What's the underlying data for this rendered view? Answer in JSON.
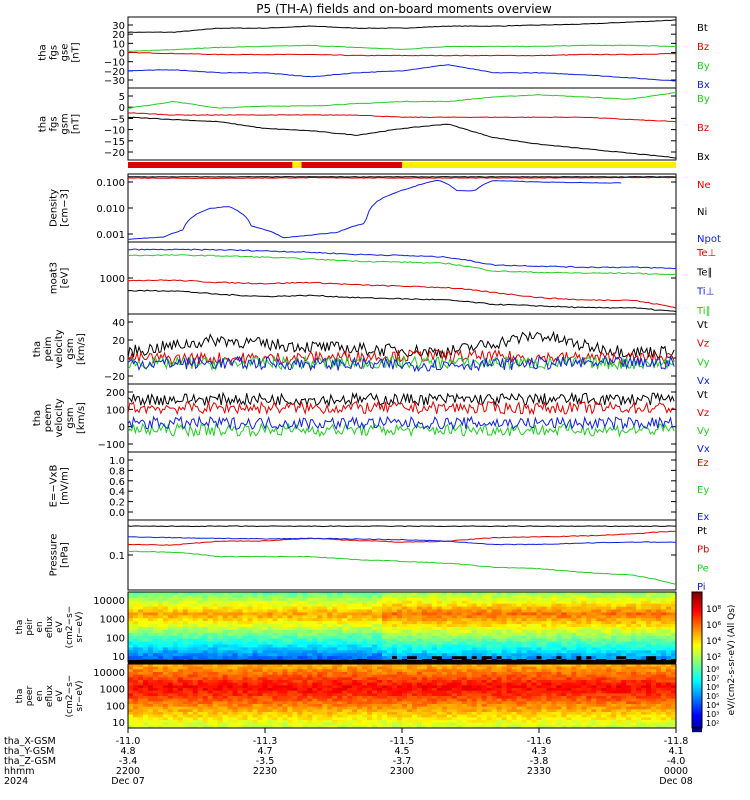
{
  "title": "P5 (TH-A) fields and on-board moments overview",
  "colors": {
    "black": "#000000",
    "red": "#dd0000",
    "green": "#22cc22",
    "blue": "#1020dd",
    "yellow": "#ffee00",
    "barred": "#dd0000"
  },
  "chart_data": {
    "type": "line",
    "x_axis": {
      "label_rows": [
        "tha_X-GSM",
        "tha_Y-GSM",
        "tha_Z-GSM",
        "hhmm",
        "2024"
      ],
      "tick_times": [
        "2200",
        "2230",
        "2300",
        "2330",
        "0000"
      ],
      "tick_dates": [
        "Dec 07",
        "",
        "",
        "",
        "Dec 08"
      ],
      "x_gsm": [
        "-11.0",
        "-11.3",
        "-11.5",
        "-11.6",
        "-11.8"
      ],
      "y_gsm": [
        "4.8",
        "4.7",
        "4.5",
        "4.3",
        "4.1"
      ],
      "z_gsm": [
        "-3.4",
        "-3.5",
        "-3.7",
        "-3.8",
        "-4.0"
      ],
      "range_minutes": [
        0,
        120
      ]
    },
    "panels": [
      {
        "id": "fgs_gse",
        "ylabel_lines": [
          "tha",
          "fgs",
          "gse",
          "[nT]"
        ],
        "yrange": [
          -35,
          35
        ],
        "yticks": [
          "30",
          "20",
          "10",
          "0",
          "−10",
          "−20",
          "−30"
        ],
        "series": [
          {
            "name": "Bt",
            "color": "black",
            "x": [
              0,
              10,
              20,
              30,
              40,
              50,
              60,
              70,
              80,
              90,
              100,
              110,
              120
            ],
            "y": [
              20,
              20,
              24,
              24,
              26,
              24,
              24,
              26,
              26,
              27,
              28,
              30,
              32
            ]
          },
          {
            "name": "Bz",
            "color": "red",
            "x": [
              0,
              10,
              20,
              30,
              40,
              50,
              60,
              70,
              80,
              90,
              100,
              110,
              120
            ],
            "y": [
              0,
              -1,
              -2,
              -2,
              -2,
              -3,
              -3,
              -3,
              -3,
              -3,
              -2,
              -2,
              -1
            ]
          },
          {
            "name": "By",
            "color": "green",
            "x": [
              0,
              10,
              20,
              30,
              40,
              50,
              60,
              70,
              80,
              90,
              100,
              110,
              120
            ],
            "y": [
              1,
              3,
              5,
              6,
              7,
              5,
              3,
              6,
              6,
              6,
              7,
              7,
              6
            ]
          },
          {
            "name": "Bx",
            "color": "blue",
            "x": [
              0,
              10,
              20,
              30,
              40,
              50,
              60,
              70,
              80,
              90,
              100,
              110,
              120
            ],
            "y": [
              -18,
              -17,
              -20,
              -20,
              -24,
              -20,
              -18,
              -12,
              -20,
              -20,
              -22,
              -25,
              -28
            ]
          }
        ]
      },
      {
        "id": "fgs_gsm",
        "ylabel_lines": [
          "tha",
          "fgs",
          "gsm",
          "[nT]"
        ],
        "yrange": [
          -24,
          8
        ],
        "yticks": [
          "5",
          "0",
          "−5",
          "−10",
          "−15",
          "−20"
        ],
        "series": [
          {
            "name": "By",
            "color": "green",
            "x": [
              0,
              10,
              20,
              30,
              40,
              50,
              60,
              70,
              80,
              90,
              100,
              110,
              120
            ],
            "y": [
              -1,
              2,
              -1,
              0,
              0,
              1,
              2,
              2,
              4,
              5,
              4,
              3,
              6
            ]
          },
          {
            "name": "Bz",
            "color": "red",
            "x": [
              0,
              10,
              20,
              30,
              40,
              50,
              60,
              70,
              80,
              90,
              100,
              110,
              120
            ],
            "y": [
              -3,
              -4,
              -4,
              -4,
              -4,
              -4,
              -5,
              -5,
              -5,
              -5,
              -5,
              -6,
              -7
            ]
          },
          {
            "name": "Bx",
            "color": "black",
            "x": [
              0,
              10,
              20,
              30,
              40,
              50,
              60,
              70,
              80,
              90,
              100,
              110,
              120
            ],
            "y": [
              -5,
              -6,
              -7,
              -10,
              -11,
              -13,
              -10,
              -8,
              -14,
              -17,
              -19,
              -21,
              -23
            ]
          }
        ]
      },
      {
        "id": "density",
        "ylabel_lines": [
          "Density",
          "[cm−3]"
        ],
        "yrange": [
          0.0006,
          0.6
        ],
        "log": true,
        "yticks": [
          "0.100",
          "0.010",
          "0.001"
        ],
        "series": [
          {
            "name": "Ne",
            "color": "red",
            "x": [
              0,
              20,
              40,
              60,
              80,
              100,
              120
            ],
            "y": [
              0.4,
              0.39,
              0.41,
              0.4,
              0.4,
              0.41,
              0.42
            ]
          },
          {
            "name": "Ni",
            "color": "black",
            "x": [
              0,
              120
            ],
            "y": [
              0.45,
              0.45
            ]
          },
          {
            "name": "Npot",
            "color": "blue",
            "x": [
              0,
              8,
              12,
              18,
              22,
              27,
              34,
              40,
              46,
              52,
              58,
              62,
              66,
              68,
              72,
              76,
              80,
              86,
              92,
              100,
              108
            ],
            "y": [
              0.0008,
              0.001,
              0.002,
              0.018,
              0.022,
              0.003,
              0.0009,
              0.0012,
              0.0016,
              0.004,
              0.08,
              0.15,
              0.26,
              0.32,
              0.11,
              0.11,
              0.31,
              0.28,
              0.26,
              0.25,
              0.24
            ]
          }
        ]
      },
      {
        "id": "temps",
        "ylabel_lines": [
          "moat3",
          "[eV]"
        ],
        "yrange": [
          450,
          12000
        ],
        "log": true,
        "yticks": [
          "1000"
        ],
        "series": [
          {
            "name": "Te⊥",
            "color": "red",
            "x": [
              0,
              10,
              20,
              30,
              40,
              50,
              60,
              70,
              80,
              90,
              100,
              110,
              120
            ],
            "y": [
              2100,
              2100,
              1900,
              1800,
              1900,
              1700,
              1600,
              1500,
              1200,
              950,
              850,
              850,
              600
            ]
          },
          {
            "name": "Te∥",
            "color": "black",
            "x": [
              0,
              10,
              20,
              30,
              40,
              50,
              60,
              70,
              80,
              90,
              100,
              110,
              120
            ],
            "y": [
              1300,
              1300,
              1100,
              1000,
              1050,
              950,
              900,
              850,
              700,
              650,
              600,
              600,
              500
            ]
          },
          {
            "name": "Ti⊥",
            "color": "blue",
            "x": [
              0,
              10,
              20,
              30,
              40,
              50,
              60,
              70,
              80,
              90,
              100,
              110,
              120
            ],
            "y": [
              8500,
              8500,
              8400,
              8000,
              7500,
              6800,
              6500,
              6000,
              4200,
              4000,
              3800,
              3800,
              3600
            ]
          },
          {
            "name": "Ti∥",
            "color": "green",
            "x": [
              0,
              10,
              20,
              30,
              40,
              50,
              60,
              70,
              80,
              90,
              100,
              110,
              120
            ],
            "y": [
              6500,
              6600,
              6400,
              6000,
              5500,
              5000,
              4800,
              4500,
              3200,
              3000,
              2900,
              2900,
              2700
            ]
          }
        ]
      },
      {
        "id": "peim_vel",
        "ylabel_lines": [
          "tha",
          "peim",
          "velocity",
          "gsm",
          "[km/s]"
        ],
        "yrange": [
          -22,
          52
        ],
        "noisy": true,
        "yticks": [
          "40",
          "20",
          "0",
          "−20"
        ],
        "series": [
          {
            "name": "Vt",
            "color": "black",
            "x": [
              0,
              20,
              30,
              50,
              70,
              90,
              100,
              110,
              120
            ],
            "y": [
              12,
              25,
              20,
              15,
              12,
              30,
              18,
              12,
              12
            ]
          },
          {
            "name": "Vz",
            "color": "red",
            "x": [
              0,
              30,
              60,
              90,
              120
            ],
            "y": [
              5,
              5,
              8,
              6,
              5
            ]
          },
          {
            "name": "Vy",
            "color": "green",
            "x": [
              0,
              30,
              60,
              90,
              120
            ],
            "y": [
              0,
              0,
              1,
              0,
              0
            ]
          },
          {
            "name": "Vx",
            "color": "blue",
            "x": [
              0,
              30,
              60,
              90,
              120
            ],
            "y": [
              0,
              0,
              -2,
              0,
              0
            ]
          }
        ]
      },
      {
        "id": "peem_vel",
        "ylabel_lines": [
          "tha",
          "peem",
          "velocity",
          "gsm",
          "[km/s]"
        ],
        "yrange": [
          -200,
          200
        ],
        "noisy": true,
        "yticks": [
          "200",
          "100",
          "0",
          "−100"
        ],
        "series": [
          {
            "name": "Vt",
            "color": "black",
            "x": [
              0,
              60,
              120
            ],
            "y": [
              110,
              110,
              110
            ]
          },
          {
            "name": "Vz",
            "color": "red",
            "x": [
              0,
              60,
              120
            ],
            "y": [
              60,
              60,
              60
            ]
          },
          {
            "name": "Vy",
            "color": "green",
            "x": [
              0,
              60,
              120
            ],
            "y": [
              -70,
              -70,
              -70
            ]
          },
          {
            "name": "Vx",
            "color": "blue",
            "x": [
              0,
              60,
              120
            ],
            "y": [
              -30,
              -30,
              -30
            ]
          }
        ]
      },
      {
        "id": "efield",
        "ylabel_lines": [
          "E=−VxB",
          "[mV/m]"
        ],
        "yrange": [
          -0.05,
          1.05
        ],
        "yticks": [
          "1.0",
          "0.8",
          "0.6",
          "0.4",
          "0.2",
          "0.0"
        ],
        "series": [
          {
            "name": "Ez",
            "color": "red",
            "x": [],
            "y": []
          },
          {
            "name": "Ey",
            "color": "green",
            "x": [],
            "y": []
          },
          {
            "name": "Ex",
            "color": "blue",
            "x": [],
            "y": []
          }
        ]
      },
      {
        "id": "pressure",
        "ylabel_lines": [
          "Pressure",
          "[nPa]"
        ],
        "yrange": [
          0.008,
          1.6
        ],
        "log": true,
        "yticks": [
          "0.1"
        ],
        "series": [
          {
            "name": "Pt",
            "color": "black",
            "x": [
              0,
              120
            ],
            "y": [
              1.0,
              1.0
            ]
          },
          {
            "name": "Pb",
            "color": "red",
            "x": [
              0,
              10,
              20,
              30,
              40,
              50,
              60,
              70,
              80,
              90,
              100,
              110,
              120
            ],
            "y": [
              0.25,
              0.24,
              0.32,
              0.33,
              0.4,
              0.34,
              0.3,
              0.32,
              0.42,
              0.45,
              0.48,
              0.55,
              0.7
            ]
          },
          {
            "name": "Pe",
            "color": "green",
            "x": [
              0,
              10,
              20,
              30,
              40,
              50,
              60,
              70,
              80,
              90,
              100,
              110,
              120
            ],
            "y": [
              0.15,
              0.14,
              0.1,
              0.1,
              0.1,
              0.08,
              0.07,
              0.06,
              0.045,
              0.04,
              0.03,
              0.025,
              0.012
            ]
          },
          {
            "name": "Pi",
            "color": "blue",
            "x": [
              0,
              10,
              20,
              30,
              40,
              50,
              60,
              70,
              80,
              90,
              100,
              110,
              120
            ],
            "y": [
              0.45,
              0.42,
              0.4,
              0.38,
              0.4,
              0.38,
              0.36,
              0.32,
              0.25,
              0.25,
              0.28,
              0.3,
              0.3
            ]
          }
        ]
      }
    ],
    "spectrograms": [
      {
        "id": "peir",
        "ylabel_lines": [
          "tha",
          "peir",
          "en",
          "eflux",
          "eV",
          "(cm2−s−",
          "sr−eV)"
        ],
        "yticks": [
          "10000",
          "1000",
          "100",
          "10"
        ]
      },
      {
        "id": "peer",
        "ylabel_lines": [
          "tha",
          "peer",
          "en",
          "eflux",
          "eV",
          "(cm2−s−",
          "sr−eV)"
        ],
        "yticks": [
          "10000",
          "1000",
          "100",
          "10"
        ]
      }
    ],
    "colorbar": {
      "label": "eV/(cm2-s-sr-eV) (All Qs)",
      "ticks_top": [
        "10⁸",
        "10⁶",
        "10⁴",
        "10²"
      ],
      "ticks_bottom": [
        "10⁸",
        "10⁷",
        "10⁶",
        "10⁵",
        "10⁴",
        "10³",
        "10²"
      ]
    },
    "mode_bar": {
      "segments": [
        {
          "from": 0,
          "to": 36,
          "color": "red"
        },
        {
          "from": 36,
          "to": 38,
          "color": "yellow"
        },
        {
          "from": 38,
          "to": 60,
          "color": "red"
        },
        {
          "from": 60,
          "to": 120,
          "color": "yellow"
        }
      ]
    }
  }
}
